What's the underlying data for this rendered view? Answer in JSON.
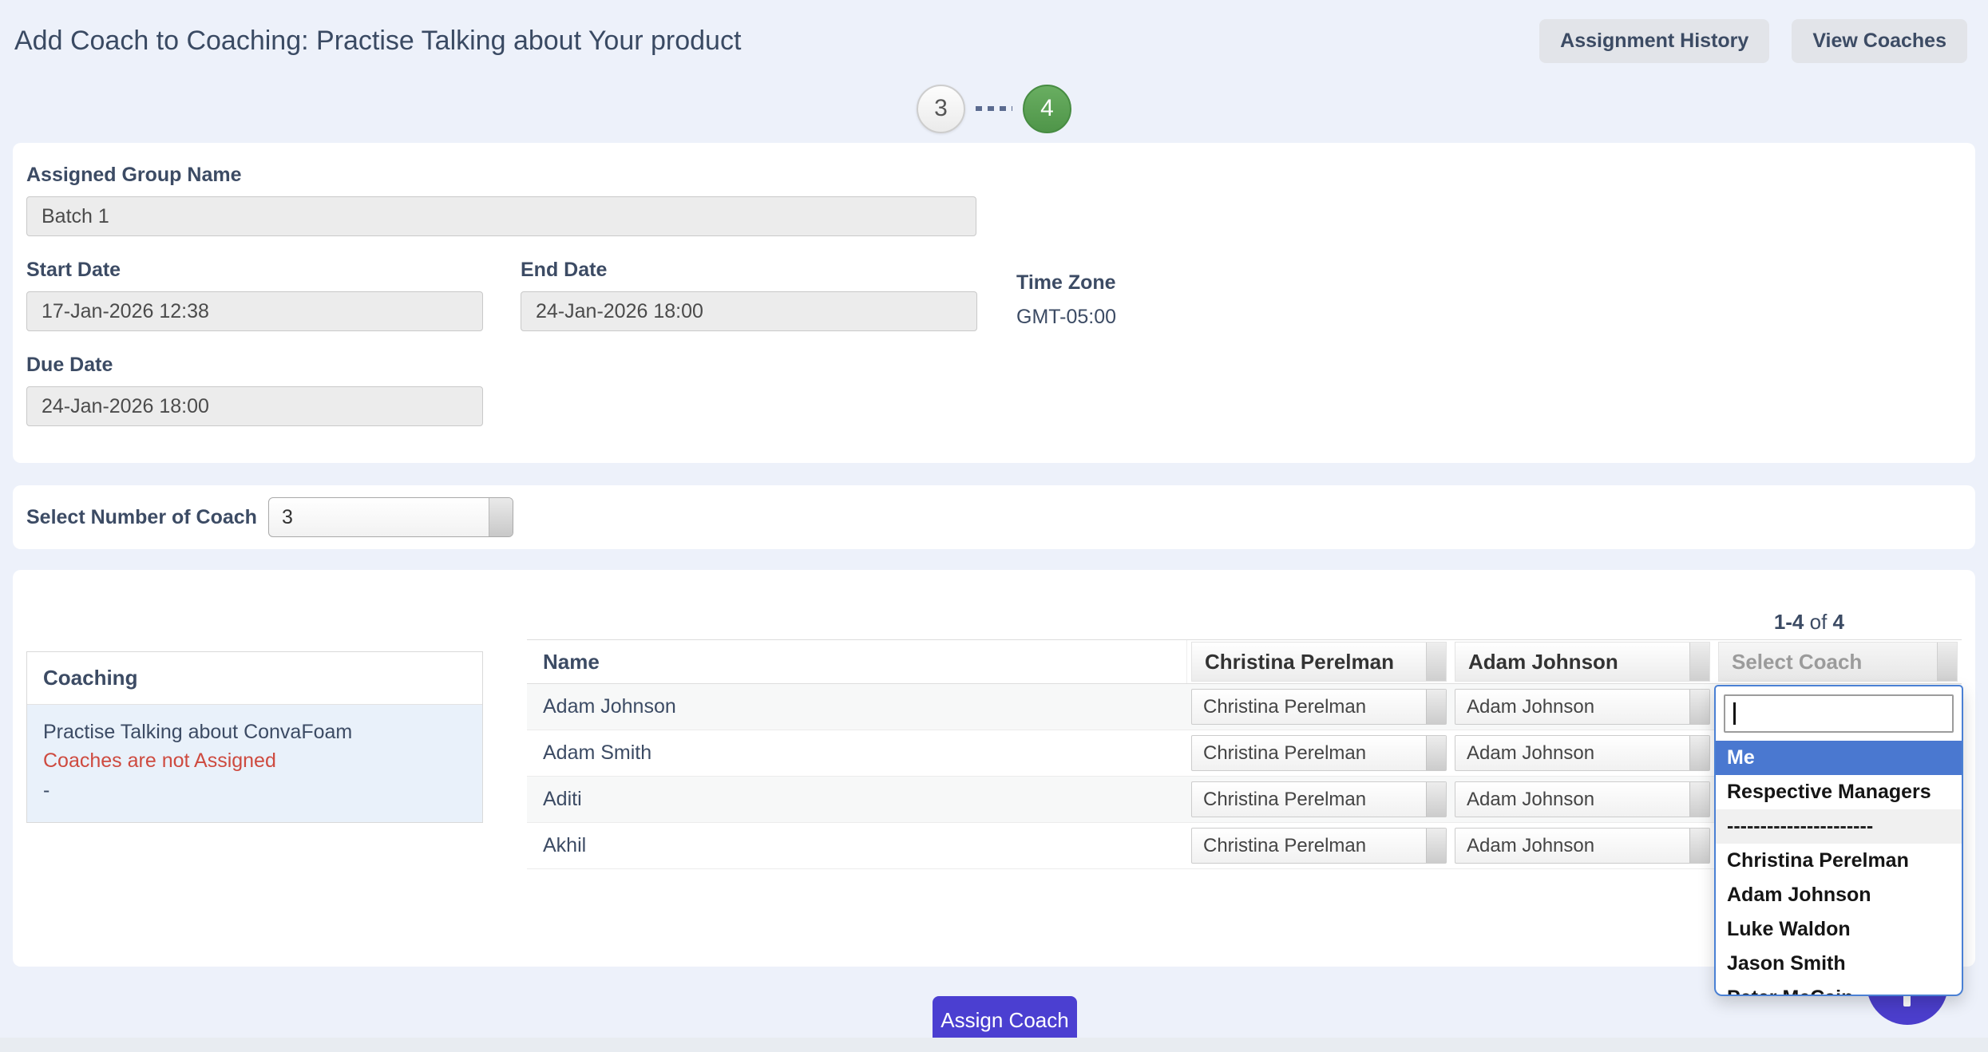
{
  "header": {
    "title": "Add Coach to Coaching: Practise Talking about Your product",
    "buttons": {
      "assignment_history": "Assignment History",
      "view_coaches": "View Coaches"
    }
  },
  "stepper": {
    "steps": [
      {
        "label": "3",
        "state": "inactive"
      },
      {
        "label": "4",
        "state": "active"
      }
    ]
  },
  "details": {
    "assigned_group": {
      "label": "Assigned Group Name",
      "value": "Batch 1"
    },
    "start_date": {
      "label": "Start Date",
      "value": "17-Jan-2026 12:38"
    },
    "end_date": {
      "label": "End Date",
      "value": "24-Jan-2026 18:00"
    },
    "time_zone": {
      "label": "Time Zone",
      "value": "GMT-05:00"
    },
    "due_date": {
      "label": "Due Date",
      "value": "24-Jan-2026 18:00"
    }
  },
  "coach_count": {
    "label": "Select Number of Coach",
    "value": "3"
  },
  "assignment": {
    "pagination": {
      "range": "1-4",
      "of_label": " of ",
      "total": "4"
    },
    "coaching_panel": {
      "header": "Coaching",
      "course": "Practise Talking about ConvaFoam",
      "status": "Coaches are not Assigned",
      "extra": "-"
    },
    "table": {
      "name_header": "Name",
      "coach_header_1": "Christina Perelman",
      "coach_header_2": "Adam Johnson",
      "select_coach_header": "Select Coach",
      "rows": [
        {
          "name": "Adam Johnson",
          "coach1": "Christina Perelman",
          "coach2": "Adam Johnson"
        },
        {
          "name": "Adam Smith",
          "coach1": "Christina Perelman",
          "coach2": "Adam Johnson"
        },
        {
          "name": "Aditi",
          "coach1": "Christina Perelman",
          "coach2": "Adam Johnson"
        },
        {
          "name": "Akhil",
          "coach1": "Christina Perelman",
          "coach2": "Adam Johnson"
        }
      ]
    },
    "coach_dropdown": {
      "search_value": "",
      "options": [
        {
          "label": "Me"
        },
        {
          "label": "Respective Managers"
        },
        {
          "label": "----------------------"
        },
        {
          "label": "Christina Perelman"
        },
        {
          "label": "Adam Johnson"
        },
        {
          "label": "Luke Waldon"
        },
        {
          "label": "Jason Smith"
        },
        {
          "label": "Peter McCain"
        }
      ]
    }
  },
  "footer": {
    "assign_button": "Assign Coach"
  },
  "colors": {
    "accent_purple": "#4b3fd1",
    "success_green": "#57a050",
    "highlight_blue": "#4a78d0",
    "error_red": "#ce4a3f",
    "page_background": "#edf1fa"
  }
}
